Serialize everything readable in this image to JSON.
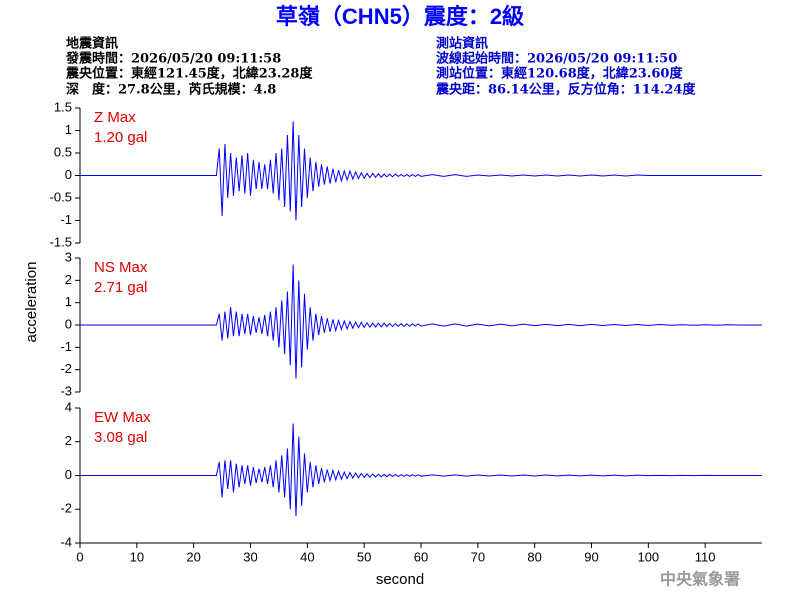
{
  "header": {
    "title": "草嶺（CHN5）震度：2級",
    "left": [
      "地震資訊",
      "發震時間：2026/05/20 09:11:58",
      "震央位置：東經121.45度，北緯23.28度",
      "深　度：27.8公里，芮氏規模：4.8"
    ],
    "right": [
      "測站資訊",
      "波線起始時間：2026/05/20 09:11:50",
      "測站位置：東經120.68度，北緯23.60度",
      "震央距：86.14公里，反方位角：114.24度"
    ]
  },
  "y_label": "acceleration",
  "x_label": "second",
  "watermark": "中央氣象署",
  "chart_data": [
    {
      "type": "line",
      "annotations": [
        "Z Max",
        "1.20 gal"
      ],
      "color": "#0000ff",
      "xlim": [
        0,
        120
      ],
      "ylim": [
        -1.5,
        1.5
      ],
      "yticks": [
        -1.5,
        -1,
        -0.5,
        0,
        0.5,
        1,
        1.5
      ],
      "x": [
        0,
        10,
        20,
        24,
        24.5,
        25,
        25.5,
        26,
        26.5,
        27,
        27.5,
        28,
        28.5,
        29,
        29.5,
        30,
        30.5,
        31,
        31.5,
        32,
        32.5,
        33,
        33.5,
        34,
        34.5,
        35,
        35.5,
        36,
        36.5,
        37,
        37.5,
        38,
        38.5,
        39,
        39.5,
        40,
        40.5,
        41,
        41.5,
        42,
        42.5,
        43,
        43.5,
        44,
        44.5,
        45,
        45.5,
        46,
        46.5,
        47,
        47.5,
        48,
        48.5,
        49,
        49.5,
        50,
        50.5,
        51,
        51.5,
        52,
        52.5,
        53,
        53.5,
        54,
        54.5,
        55,
        55.5,
        56,
        56.5,
        57,
        57.5,
        58,
        58.5,
        59,
        59.5,
        60,
        62,
        64,
        66,
        68,
        70,
        72,
        74,
        76,
        78,
        80,
        82,
        84,
        86,
        88,
        90,
        92,
        94,
        96,
        98,
        100,
        102,
        104,
        106,
        108,
        110,
        112,
        114,
        116,
        118,
        120
      ],
      "values": [
        0,
        0,
        0,
        0,
        0.6,
        -0.9,
        0.7,
        -0.5,
        0.5,
        -0.45,
        0.4,
        -0.35,
        0.45,
        -0.4,
        0.5,
        -0.45,
        0.35,
        -0.3,
        0.3,
        -0.3,
        0.25,
        -0.3,
        0.35,
        -0.4,
        0.5,
        -0.55,
        0.6,
        -0.7,
        0.9,
        -0.8,
        1.2,
        -1.0,
        0.9,
        -0.7,
        0.6,
        -0.5,
        0.4,
        -0.35,
        0.3,
        -0.25,
        0.25,
        -0.2,
        0.2,
        -0.18,
        0.15,
        -0.15,
        0.12,
        -0.12,
        0.1,
        -0.1,
        0.1,
        -0.08,
        0.08,
        -0.07,
        0.06,
        -0.06,
        0.05,
        -0.05,
        0.05,
        -0.04,
        0.04,
        -0.04,
        0.03,
        -0.03,
        0.03,
        -0.03,
        0.03,
        -0.02,
        0.02,
        -0.02,
        0.02,
        -0.02,
        0.02,
        -0.02,
        0.02,
        -0.02,
        0.02,
        -0.02,
        0.02,
        -0.02,
        0.01,
        -0.01,
        0.01,
        -0.01,
        0.01,
        -0.01,
        0.01,
        -0.01,
        0.01,
        -0.01,
        0.01,
        -0.01,
        0.01,
        -0.01,
        0.01,
        0,
        0,
        0,
        0,
        0,
        0,
        0,
        0,
        0,
        0,
        0
      ]
    },
    {
      "type": "line",
      "annotations": [
        "NS Max",
        "2.71 gal"
      ],
      "color": "#0000ff",
      "xlim": [
        0,
        120
      ],
      "ylim": [
        -3,
        3
      ],
      "yticks": [
        -3,
        -2,
        -1,
        0,
        1,
        2,
        3
      ],
      "x": [
        0,
        10,
        20,
        24,
        24.5,
        25,
        25.5,
        26,
        26.5,
        27,
        27.5,
        28,
        28.5,
        29,
        29.5,
        30,
        30.5,
        31,
        31.5,
        32,
        32.5,
        33,
        33.5,
        34,
        34.5,
        35,
        35.5,
        36,
        36.5,
        37,
        37.5,
        38,
        38.5,
        39,
        39.5,
        40,
        40.5,
        41,
        41.5,
        42,
        42.5,
        43,
        43.5,
        44,
        44.5,
        45,
        45.5,
        46,
        46.5,
        47,
        47.5,
        48,
        48.5,
        49,
        49.5,
        50,
        50.5,
        51,
        51.5,
        52,
        52.5,
        53,
        53.5,
        54,
        54.5,
        55,
        55.5,
        56,
        56.5,
        57,
        57.5,
        58,
        58.5,
        59,
        59.5,
        60,
        62,
        64,
        66,
        68,
        70,
        72,
        74,
        76,
        78,
        80,
        82,
        84,
        86,
        88,
        90,
        92,
        94,
        96,
        98,
        100,
        102,
        104,
        106,
        108,
        110,
        112,
        114,
        116,
        118,
        120
      ],
      "values": [
        0,
        0,
        0,
        0,
        0.5,
        -0.7,
        0.6,
        -0.6,
        0.8,
        -0.5,
        0.6,
        -0.5,
        0.5,
        -0.4,
        0.5,
        -0.45,
        0.4,
        -0.35,
        0.35,
        -0.4,
        0.45,
        -0.5,
        0.6,
        -0.7,
        0.8,
        -1.0,
        1.1,
        -1.3,
        1.5,
        -1.8,
        2.71,
        -2.4,
        2.0,
        -1.9,
        1.4,
        -1.1,
        0.8,
        -0.7,
        0.5,
        -0.45,
        0.4,
        -0.35,
        0.3,
        -0.3,
        0.25,
        -0.25,
        0.2,
        -0.2,
        0.18,
        -0.17,
        0.15,
        -0.14,
        0.13,
        -0.12,
        0.12,
        -0.11,
        0.1,
        -0.1,
        0.09,
        -0.09,
        0.08,
        -0.08,
        0.08,
        -0.07,
        0.07,
        -0.07,
        0.06,
        -0.06,
        0.06,
        -0.06,
        0.05,
        -0.05,
        0.05,
        -0.05,
        0.05,
        -0.05,
        0.05,
        -0.05,
        0.05,
        -0.05,
        0.04,
        -0.04,
        0.04,
        -0.04,
        0.04,
        -0.03,
        0.03,
        -0.03,
        0.03,
        -0.03,
        0.03,
        -0.02,
        0.02,
        -0.02,
        0.02,
        -0.02,
        0.02,
        -0.01,
        0.01,
        -0.01,
        0.01,
        -0.01,
        0.01,
        0,
        0,
        0
      ]
    },
    {
      "type": "line",
      "annotations": [
        "EW Max",
        "3.08 gal"
      ],
      "color": "#0000ff",
      "xlim": [
        0,
        120
      ],
      "ylim": [
        -4,
        4
      ],
      "yticks": [
        -4,
        -2,
        0,
        2,
        4
      ],
      "xticks": [
        0,
        10,
        20,
        30,
        40,
        50,
        60,
        70,
        80,
        90,
        100,
        110
      ],
      "x": [
        0,
        10,
        20,
        24,
        24.5,
        25,
        25.5,
        26,
        26.5,
        27,
        27.5,
        28,
        28.5,
        29,
        29.5,
        30,
        30.5,
        31,
        31.5,
        32,
        32.5,
        33,
        33.5,
        34,
        34.5,
        35,
        35.5,
        36,
        36.5,
        37,
        37.5,
        38,
        38.5,
        39,
        39.5,
        40,
        40.5,
        41,
        41.5,
        42,
        42.5,
        43,
        43.5,
        44,
        44.5,
        45,
        45.5,
        46,
        46.5,
        47,
        47.5,
        48,
        48.5,
        49,
        49.5,
        50,
        50.5,
        51,
        51.5,
        52,
        52.5,
        53,
        53.5,
        54,
        54.5,
        55,
        55.5,
        56,
        56.5,
        57,
        57.5,
        58,
        58.5,
        59,
        59.5,
        60,
        62,
        64,
        66,
        68,
        70,
        72,
        74,
        76,
        78,
        80,
        82,
        84,
        86,
        88,
        90,
        92,
        94,
        96,
        98,
        100,
        102,
        104,
        106,
        108,
        110,
        112,
        114,
        116,
        118,
        120
      ],
      "values": [
        0,
        0,
        0,
        0,
        0.8,
        -1.3,
        0.9,
        -0.8,
        0.9,
        -1.0,
        0.7,
        -0.7,
        0.6,
        -0.5,
        0.6,
        -0.6,
        0.5,
        -0.45,
        0.4,
        -0.4,
        0.5,
        -0.5,
        0.6,
        -0.7,
        0.9,
        -1.0,
        1.2,
        -1.3,
        1.6,
        -2.0,
        3.08,
        -2.4,
        2.3,
        -1.8,
        1.3,
        -1.0,
        0.8,
        -0.7,
        0.6,
        -0.5,
        0.45,
        -0.4,
        0.35,
        -0.3,
        0.3,
        -0.25,
        0.25,
        -0.22,
        0.2,
        -0.18,
        0.17,
        -0.15,
        0.14,
        -0.13,
        0.12,
        -0.11,
        0.1,
        -0.1,
        0.09,
        -0.09,
        0.08,
        -0.08,
        0.07,
        -0.07,
        0.07,
        -0.06,
        0.06,
        -0.06,
        0.05,
        -0.05,
        0.05,
        -0.05,
        0.05,
        -0.04,
        0.04,
        -0.04,
        0.04,
        -0.04,
        0.04,
        -0.04,
        0.03,
        -0.03,
        0.03,
        -0.03,
        0.03,
        -0.03,
        0.03,
        -0.02,
        0.02,
        -0.02,
        0.02,
        -0.02,
        0.02,
        -0.02,
        0.02,
        -0.01,
        0.01,
        -0.01,
        0.01,
        -0.01,
        0.01,
        0,
        0,
        0,
        0,
        0
      ]
    }
  ]
}
